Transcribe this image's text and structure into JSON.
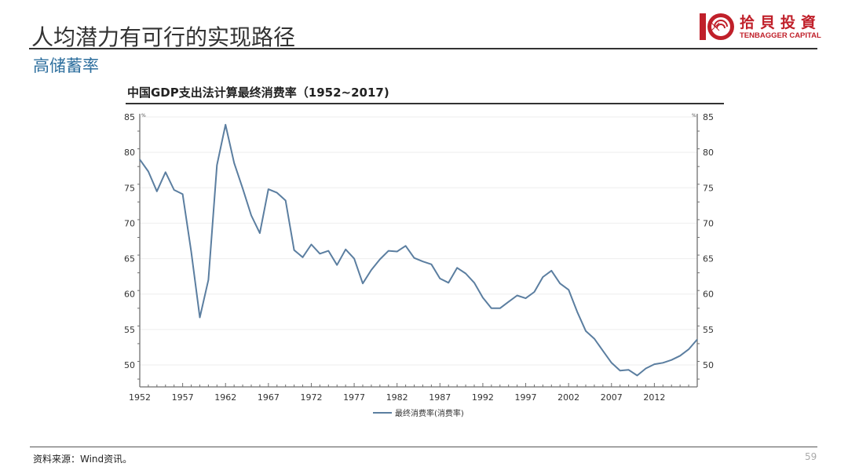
{
  "slide": {
    "title": "人均潜力有可行的实现路径",
    "subtitle": "高储蓄率",
    "page_number": "59",
    "source": "资料来源：Wind资讯。"
  },
  "logo": {
    "name_cn": "拾貝投資",
    "name_en": "TENBAGGER CAPITAL",
    "color": "#c0202a"
  },
  "chart_data": {
    "type": "line",
    "title": "中国GDP支出法计算最终消费率（1952~2017)",
    "xlabel": "",
    "ylabel": "%",
    "y_unit_left": "%",
    "y_unit_right": "%",
    "ylim": [
      47,
      85
    ],
    "yticks": [
      50,
      55,
      60,
      65,
      70,
      75,
      80,
      85
    ],
    "xlim": [
      1952,
      2017
    ],
    "xticks": [
      1952,
      1957,
      1962,
      1967,
      1972,
      1977,
      1982,
      1987,
      1992,
      1997,
      2002,
      2007,
      2012
    ],
    "grid": true,
    "dual_y_axis": true,
    "legend_position": "bottom",
    "line_color": "#5b7ea0",
    "series": [
      {
        "name": "最终消费率(消费率)",
        "x": [
          1952,
          1953,
          1954,
          1955,
          1956,
          1957,
          1958,
          1959,
          1960,
          1961,
          1962,
          1963,
          1964,
          1965,
          1966,
          1967,
          1968,
          1969,
          1970,
          1971,
          1972,
          1973,
          1974,
          1975,
          1976,
          1977,
          1978,
          1979,
          1980,
          1981,
          1982,
          1983,
          1984,
          1985,
          1986,
          1987,
          1988,
          1989,
          1990,
          1991,
          1992,
          1993,
          1994,
          1995,
          1996,
          1997,
          1998,
          1999,
          2000,
          2001,
          2002,
          2003,
          2004,
          2005,
          2006,
          2007,
          2008,
          2009,
          2010,
          2011,
          2012,
          2013,
          2014,
          2015,
          2016,
          2017
        ],
        "values": [
          79.0,
          77.3,
          74.5,
          77.2,
          74.7,
          74.1,
          66.0,
          56.7,
          62.0,
          78.2,
          83.9,
          78.5,
          74.9,
          71.1,
          68.6,
          74.8,
          74.3,
          73.2,
          66.2,
          65.2,
          67.0,
          65.7,
          66.1,
          64.1,
          66.3,
          65.0,
          61.5,
          63.4,
          64.9,
          66.1,
          66.0,
          66.8,
          65.1,
          64.6,
          64.2,
          62.2,
          61.6,
          63.7,
          62.9,
          61.6,
          59.5,
          58.0,
          58.0,
          58.9,
          59.8,
          59.4,
          60.3,
          62.4,
          63.3,
          61.5,
          60.6,
          57.5,
          54.8,
          53.7,
          52.0,
          50.3,
          49.2,
          49.3,
          48.5,
          49.5,
          50.1,
          50.3,
          50.7,
          51.3,
          52.2,
          53.6
        ]
      }
    ]
  }
}
